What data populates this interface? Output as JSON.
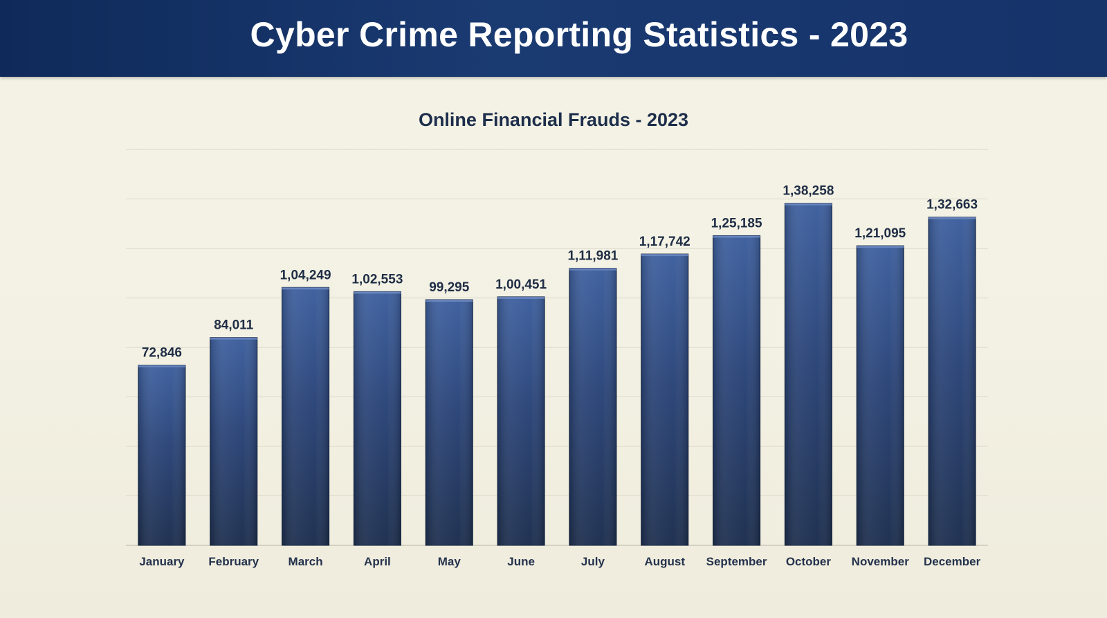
{
  "slide": {
    "title": "Cyber Crime Reporting Statistics - 2023"
  },
  "colors": {
    "header": "#16336a",
    "background": "#f4f3e6",
    "bar_top": "#3d5f9e",
    "bar_bottom": "#1c2e4e"
  },
  "chart_data": {
    "type": "bar",
    "title": "Online Financial Frauds - 2023",
    "categories": [
      "January",
      "February",
      "March",
      "April",
      "May",
      "June",
      "July",
      "August",
      "September",
      "October",
      "November",
      "December"
    ],
    "values": [
      72846,
      84011,
      104249,
      102553,
      99295,
      100451,
      111981,
      117742,
      125185,
      138258,
      121095,
      132663
    ],
    "value_labels": [
      "72,846",
      "84,011",
      "1,04,249",
      "1,02,553",
      "99,295",
      "1,00,451",
      "1,11,981",
      "1,17,742",
      "1,25,185",
      "1,38,258",
      "1,21,095",
      "1,32,663"
    ],
    "ylim": [
      0,
      160000
    ],
    "gridlines": 8,
    "grid": true,
    "legend": "none"
  }
}
